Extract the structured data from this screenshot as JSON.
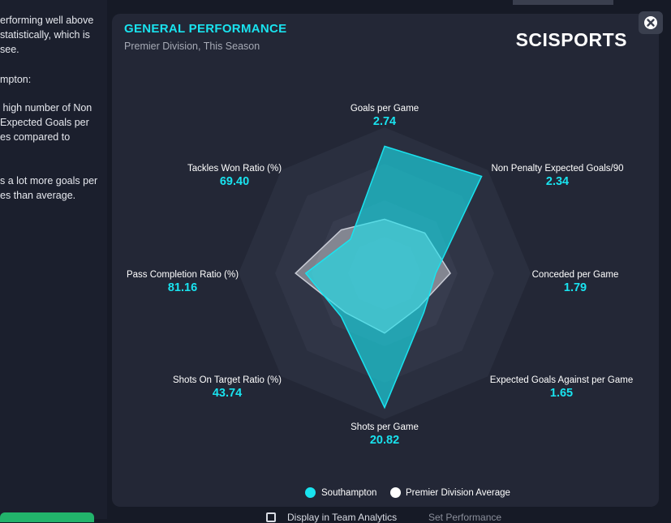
{
  "sidebar": {
    "lines": [
      "erforming well above",
      "statistically, which is",
      "see.",
      "",
      "mpton:",
      "",
      " high number of Non",
      "Expected Goals per",
      "es compared to",
      "",
      "s a lot more goals per",
      "es than average."
    ]
  },
  "bottom_bar": {
    "toggle_label": "Display in Team Analytics",
    "report_label": "Set Performance"
  },
  "panel": {
    "title": "GENERAL PERFORMANCE",
    "subtitle": "Premier Division, This Season",
    "brand": "SCISPORTS"
  },
  "legend": {
    "team": "Southampton",
    "average": "Premier Division Average"
  },
  "colors": {
    "accent": "#19e3ef",
    "team_fill": "#19e3ef",
    "avg_fill": "#ffffff",
    "panel_bg": "#232736"
  },
  "chart_data": {
    "type": "radar",
    "title": "GENERAL PERFORMANCE",
    "subtitle": "Premier Division, This Season",
    "axes": [
      {
        "name": "Goals per Game",
        "value": "2.74",
        "team": 0.87,
        "avg": 0.37
      },
      {
        "name": "Non Penalty Expected Goals/90",
        "value": "2.34",
        "team": 0.94,
        "avg": 0.39
      },
      {
        "name": "Conceded per Game",
        "value": "1.79",
        "team": 0.35,
        "avg": 0.45
      },
      {
        "name": "Expected Goals Against per Game",
        "value": "1.65",
        "team": 0.38,
        "avg": 0.33
      },
      {
        "name": "Shots per Game",
        "value": "20.82",
        "team": 0.92,
        "avg": 0.41
      },
      {
        "name": "Shots On Target Ratio (%)",
        "value": "43.74",
        "team": 0.42,
        "avg": 0.38
      },
      {
        "name": "Pass Completion Ratio (%)",
        "value": "81.16",
        "team": 0.54,
        "avg": 0.61
      },
      {
        "name": "Tackles Won Ratio (%)",
        "value": "69.40",
        "team": 0.33,
        "avg": 0.42
      }
    ],
    "series": [
      {
        "name": "Southampton",
        "color": "#19e3ef"
      },
      {
        "name": "Premier Division Average",
        "color": "#ffffff"
      }
    ],
    "rings": 4
  }
}
